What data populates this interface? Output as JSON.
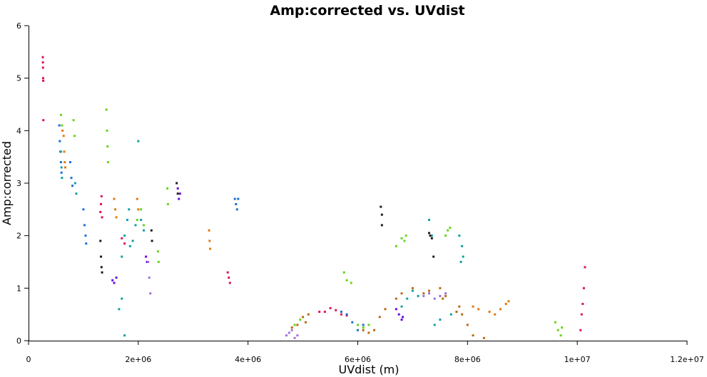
{
  "chart_data": {
    "type": "scatter",
    "title": "Amp:corrected vs. UVdist",
    "xlabel": "UVdist (m)",
    "ylabel": "Amp:corrected",
    "xlim": [
      0,
      12000000
    ],
    "ylim": [
      0,
      6
    ],
    "x_ticks": [
      {
        "value": 0,
        "label": "0"
      },
      {
        "value": 2000000,
        "label": "2e+06"
      },
      {
        "value": 4000000,
        "label": "4e+06"
      },
      {
        "value": 6000000,
        "label": "6e+06"
      },
      {
        "value": 8000000,
        "label": "8e+06"
      },
      {
        "value": 10000000,
        "label": "1e+07"
      },
      {
        "value": 12000000,
        "label": "1.2e+07"
      }
    ],
    "y_ticks": [
      {
        "value": 0,
        "label": "0"
      },
      {
        "value": 1,
        "label": "1"
      },
      {
        "value": 2,
        "label": "2"
      },
      {
        "value": 3,
        "label": "3"
      },
      {
        "value": 4,
        "label": "4"
      },
      {
        "value": 5,
        "label": "5"
      },
      {
        "value": 6,
        "label": "6"
      }
    ],
    "grid": false,
    "legend": "none",
    "series": [
      {
        "color": "#e0105a",
        "points": [
          [
            260000,
            5.4
          ],
          [
            262000,
            5.3
          ],
          [
            264000,
            5.2
          ],
          [
            266000,
            5.0
          ],
          [
            268000,
            4.95
          ],
          [
            270000,
            4.2
          ],
          [
            1310000,
            2.45
          ],
          [
            1320000,
            2.6
          ],
          [
            1330000,
            2.75
          ],
          [
            1340000,
            2.35
          ],
          [
            3630000,
            1.3
          ],
          [
            3650000,
            1.2
          ],
          [
            3670000,
            1.1
          ],
          [
            5300000,
            0.55
          ],
          [
            5400000,
            0.55
          ],
          [
            5500000,
            0.62
          ],
          [
            5600000,
            0.58
          ],
          [
            5700000,
            0.5
          ],
          [
            5800000,
            0.48
          ],
          [
            10080000,
            0.5
          ],
          [
            10100000,
            0.7
          ],
          [
            10120000,
            1.0
          ],
          [
            10140000,
            1.4
          ],
          [
            10060000,
            0.2
          ],
          [
            1700000,
            1.95
          ],
          [
            1750000,
            1.85
          ]
        ]
      },
      {
        "color": "#1a6fd6",
        "points": [
          [
            560000,
            4.1
          ],
          [
            570000,
            3.8
          ],
          [
            580000,
            3.6
          ],
          [
            590000,
            3.4
          ],
          [
            600000,
            3.2
          ],
          [
            760000,
            3.4
          ],
          [
            780000,
            3.1
          ],
          [
            800000,
            2.95
          ],
          [
            1000000,
            2.5
          ],
          [
            1020000,
            2.2
          ],
          [
            1040000,
            2.0
          ],
          [
            1050000,
            1.85
          ],
          [
            3760000,
            2.7
          ],
          [
            3780000,
            2.6
          ],
          [
            3800000,
            2.5
          ],
          [
            3820000,
            2.7
          ],
          [
            5700000,
            0.55
          ],
          [
            5800000,
            0.5
          ],
          [
            5900000,
            0.35
          ],
          [
            6000000,
            0.2
          ],
          [
            6100000,
            0.3
          ]
        ]
      },
      {
        "color": "#e07810",
        "points": [
          [
            620000,
            4.0
          ],
          [
            640000,
            3.9
          ],
          [
            650000,
            3.6
          ],
          [
            660000,
            3.4
          ],
          [
            670000,
            3.3
          ],
          [
            1560000,
            2.7
          ],
          [
            1580000,
            2.5
          ],
          [
            1600000,
            2.35
          ],
          [
            1980000,
            2.7
          ],
          [
            2000000,
            2.5
          ],
          [
            3290000,
            2.1
          ],
          [
            3300000,
            1.9
          ],
          [
            3310000,
            1.75
          ],
          [
            8100000,
            0.65
          ],
          [
            8200000,
            0.6
          ],
          [
            8400000,
            0.55
          ],
          [
            8500000,
            0.5
          ],
          [
            8600000,
            0.6
          ],
          [
            8700000,
            0.7
          ],
          [
            8750000,
            0.75
          ]
        ]
      },
      {
        "color": "#10a0a0",
        "points": [
          [
            590000,
            3.6
          ],
          [
            600000,
            3.3
          ],
          [
            610000,
            3.1
          ],
          [
            850000,
            3.0
          ],
          [
            870000,
            2.8
          ],
          [
            1700000,
            1.6
          ],
          [
            1750000,
            2.0
          ],
          [
            1800000,
            2.3
          ],
          [
            1830000,
            2.5
          ],
          [
            1850000,
            1.8
          ],
          [
            1900000,
            1.9
          ],
          [
            1950000,
            2.2
          ],
          [
            2000000,
            3.8
          ],
          [
            2050000,
            2.3
          ],
          [
            2100000,
            2.1
          ],
          [
            1650000,
            0.6
          ],
          [
            1700000,
            0.8
          ],
          [
            1750000,
            0.1
          ],
          [
            6800000,
            0.65
          ],
          [
            6900000,
            0.8
          ],
          [
            7000000,
            0.95
          ],
          [
            7100000,
            0.85
          ],
          [
            7300000,
            2.3
          ],
          [
            7350000,
            2.0
          ],
          [
            7400000,
            0.3
          ],
          [
            7500000,
            0.4
          ],
          [
            7700000,
            0.5
          ],
          [
            7800000,
            0.55
          ],
          [
            7850000,
            2.0
          ],
          [
            7900000,
            1.8
          ],
          [
            7880000,
            1.5
          ],
          [
            7920000,
            1.6
          ]
        ]
      },
      {
        "color": "#6a0ae0",
        "points": [
          [
            1530000,
            1.15
          ],
          [
            1560000,
            1.1
          ],
          [
            1600000,
            1.2
          ],
          [
            2720000,
            2.9
          ],
          [
            2740000,
            2.7
          ],
          [
            2760000,
            2.8
          ],
          [
            6700000,
            0.6
          ],
          [
            6750000,
            0.5
          ],
          [
            6800000,
            0.4
          ],
          [
            6820000,
            0.45
          ],
          [
            2140000,
            1.6
          ],
          [
            2160000,
            1.5
          ]
        ]
      },
      {
        "color": "#66d61a",
        "points": [
          [
            590000,
            4.3
          ],
          [
            610000,
            4.1
          ],
          [
            820000,
            4.2
          ],
          [
            840000,
            3.9
          ],
          [
            1420000,
            4.4
          ],
          [
            1430000,
            4.0
          ],
          [
            1440000,
            3.7
          ],
          [
            1450000,
            3.4
          ],
          [
            1980000,
            2.3
          ],
          [
            2050000,
            2.5
          ],
          [
            2100000,
            2.2
          ],
          [
            2360000,
            1.7
          ],
          [
            2370000,
            1.5
          ],
          [
            2530000,
            2.9
          ],
          [
            2540000,
            2.6
          ],
          [
            5750000,
            1.3
          ],
          [
            5800000,
            1.15
          ],
          [
            5880000,
            1.1
          ],
          [
            6700000,
            1.8
          ],
          [
            6800000,
            1.95
          ],
          [
            6850000,
            1.9
          ],
          [
            6880000,
            2.0
          ],
          [
            7600000,
            2.0
          ],
          [
            7640000,
            2.1
          ],
          [
            7680000,
            2.15
          ],
          [
            4850000,
            0.3
          ],
          [
            4950000,
            0.4
          ],
          [
            6000000,
            0.3
          ],
          [
            6100000,
            0.25
          ],
          [
            6200000,
            0.3
          ],
          [
            9600000,
            0.35
          ],
          [
            9650000,
            0.2
          ],
          [
            9700000,
            0.1
          ],
          [
            9720000,
            0.25
          ]
        ]
      },
      {
        "color": "#1c1c1c",
        "points": [
          [
            1310000,
            1.9
          ],
          [
            1320000,
            1.6
          ],
          [
            1330000,
            1.4
          ],
          [
            1340000,
            1.3
          ],
          [
            2240000,
            2.1
          ],
          [
            2250000,
            1.9
          ],
          [
            2700000,
            3.0
          ],
          [
            2720000,
            2.8
          ],
          [
            6420000,
            2.55
          ],
          [
            6440000,
            2.4
          ],
          [
            6440000,
            2.2
          ],
          [
            7300000,
            2.05
          ],
          [
            7320000,
            2.0
          ],
          [
            7350000,
            1.95
          ],
          [
            7380000,
            1.6
          ]
        ]
      },
      {
        "color": "#b86a10",
        "points": [
          [
            4800000,
            0.25
          ],
          [
            4900000,
            0.3
          ],
          [
            5000000,
            0.45
          ],
          [
            5100000,
            0.5
          ],
          [
            5050000,
            0.35
          ],
          [
            6100000,
            0.2
          ],
          [
            6200000,
            0.15
          ],
          [
            6300000,
            0.2
          ],
          [
            6400000,
            0.45
          ],
          [
            6500000,
            0.6
          ],
          [
            6700000,
            0.8
          ],
          [
            6800000,
            0.9
          ],
          [
            7000000,
            1.0
          ],
          [
            7200000,
            0.9
          ],
          [
            7300000,
            0.95
          ],
          [
            7500000,
            1.0
          ],
          [
            7550000,
            0.8
          ],
          [
            7600000,
            0.85
          ],
          [
            7800000,
            0.55
          ],
          [
            7850000,
            0.65
          ],
          [
            7900000,
            0.5
          ],
          [
            8000000,
            0.3
          ],
          [
            8100000,
            0.1
          ],
          [
            8300000,
            0.05
          ]
        ]
      },
      {
        "color": "#a070d8",
        "points": [
          [
            4700000,
            0.1
          ],
          [
            4750000,
            0.15
          ],
          [
            4800000,
            0.2
          ],
          [
            4850000,
            0.05
          ],
          [
            4900000,
            0.1
          ],
          [
            2180000,
            1.5
          ],
          [
            2200000,
            1.2
          ],
          [
            2220000,
            0.9
          ],
          [
            7200000,
            0.85
          ],
          [
            7300000,
            0.9
          ],
          [
            7400000,
            0.8
          ],
          [
            7500000,
            0.85
          ],
          [
            7600000,
            0.9
          ]
        ]
      }
    ]
  }
}
